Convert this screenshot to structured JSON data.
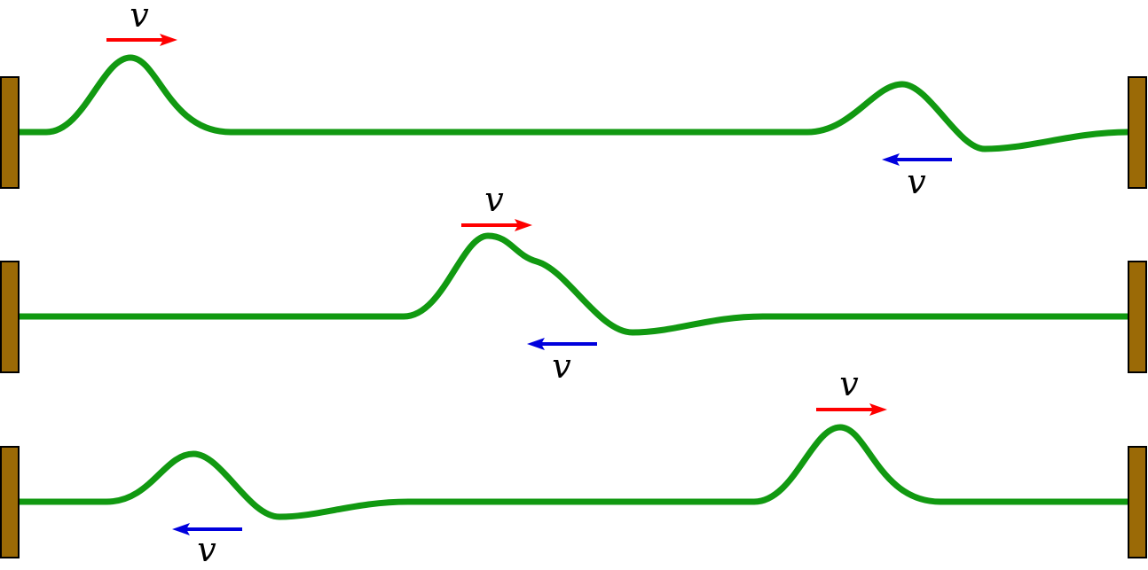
{
  "velocity_symbol": "v",
  "colors": {
    "string": "#119911",
    "wall_fill": "#9b6a06",
    "wall_stroke": "#000000",
    "arrow_right": "#ff0000",
    "arrow_left": "#0000dd"
  },
  "panels": [
    {
      "pulses": [
        {
          "shape": "crest",
          "direction": "right"
        },
        {
          "shape": "crest-with-trough",
          "direction": "left"
        }
      ]
    },
    {
      "pulses": [
        {
          "shape": "crest",
          "direction": "right"
        },
        {
          "shape": "crest-with-trough",
          "direction": "left"
        }
      ]
    },
    {
      "pulses": [
        {
          "shape": "crest-with-trough",
          "direction": "left"
        },
        {
          "shape": "crest",
          "direction": "right"
        }
      ]
    }
  ]
}
